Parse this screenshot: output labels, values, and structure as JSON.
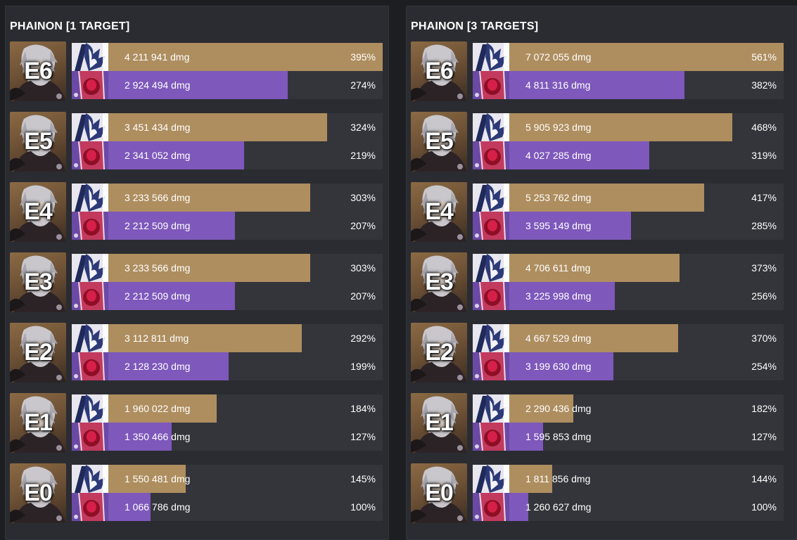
{
  "colors": {
    "lightcone_bar": "#ae8e5f",
    "relic_bar": "#7e58bb",
    "track": "#34353b",
    "panel": "#2b2c31",
    "background": "#1d1e22"
  },
  "icons": {
    "portrait": "phainon-portrait",
    "top_bar_icon": "lightcone-art-icon",
    "bottom_bar_icon": "red-relic-capsule-icon"
  },
  "chart_data": [
    {
      "type": "bar",
      "title": "PHAINON [1 TARGET]",
      "categories": [
        "E6",
        "E5",
        "E4",
        "E3",
        "E2",
        "E1",
        "E0"
      ],
      "max_percent": 395,
      "series": [
        {
          "values_dmg": [
            "4 211 941 dmg",
            "3 451 434 dmg",
            "3 233 566 dmg",
            "3 233 566 dmg",
            "3 112 811 dmg",
            "1 960 022 dmg",
            "1 550 481 dmg"
          ],
          "percent_labels": [
            "395%",
            "324%",
            "303%",
            "303%",
            "292%",
            "184%",
            "145%"
          ],
          "percent": [
            395,
            324,
            303,
            303,
            292,
            184,
            145
          ]
        },
        {
          "values_dmg": [
            "2 924 494 dmg",
            "2 341 052 dmg",
            "2 212 509 dmg",
            "2 212 509 dmg",
            "2 128 230 dmg",
            "1 350 466 dmg",
            "1 066 786 dmg"
          ],
          "percent_labels": [
            "274%",
            "219%",
            "207%",
            "207%",
            "199%",
            "127%",
            "100%"
          ],
          "percent": [
            274,
            219,
            207,
            207,
            199,
            127,
            100
          ]
        }
      ]
    },
    {
      "type": "bar",
      "title": "PHAINON [3 TARGETS]",
      "categories": [
        "E6",
        "E5",
        "E4",
        "E3",
        "E2",
        "E1",
        "E0"
      ],
      "max_percent": 561,
      "series": [
        {
          "values_dmg": [
            "7 072 055 dmg",
            "5 905 923 dmg",
            "5 253 762 dmg",
            "4 706 611 dmg",
            "4 667 529 dmg",
            "2 290 436 dmg",
            "1 811 856 dmg"
          ],
          "percent_labels": [
            "561%",
            "468%",
            "417%",
            "373%",
            "370%",
            "182%",
            "144%"
          ],
          "percent": [
            561,
            468,
            417,
            373,
            370,
            182,
            144
          ]
        },
        {
          "values_dmg": [
            "4 811 316 dmg",
            "4 027 285 dmg",
            "3 595 149 dmg",
            "3 225 998 dmg",
            "3 199 630 dmg",
            "1 595 853 dmg",
            "1 260 627 dmg"
          ],
          "percent_labels": [
            "382%",
            "319%",
            "285%",
            "256%",
            "254%",
            "127%",
            "100%"
          ],
          "percent": [
            382,
            319,
            285,
            256,
            254,
            127,
            100
          ]
        }
      ]
    }
  ]
}
